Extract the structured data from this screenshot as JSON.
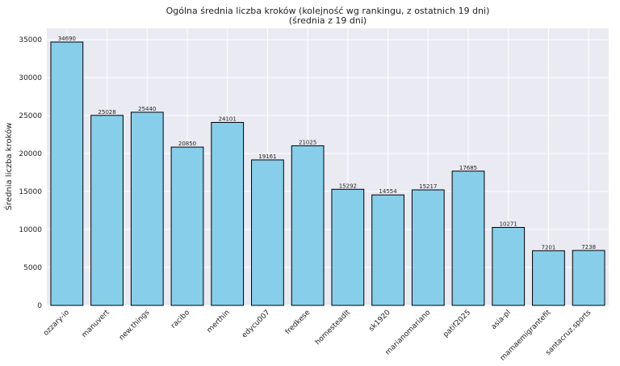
{
  "chart_data": {
    "type": "bar",
    "title": "Ogólna średnia liczba kroków (kolejność wg rankingu, z ostatnich 19 dni)",
    "subtitle": "(średnia z 19 dni)",
    "xlabel": "",
    "ylabel": "Średnia liczba kroków",
    "ylim": [
      0,
      36500
    ],
    "yticks": [
      0,
      5000,
      10000,
      15000,
      20000,
      25000,
      30000,
      35000
    ],
    "grid": true,
    "bar_color": "#87ceeb",
    "edge_color": "#000000",
    "background_color": "#eaeaf2",
    "categories": [
      "ozzary-io",
      "manuvert",
      "new.things",
      "racibo",
      "merthin",
      "edycu007",
      "fredkese",
      "homesteadlt",
      "sk1920",
      "marianomariano",
      "patif2025",
      "asia-pl",
      "mamaemigrantefit",
      "santacruz.sports"
    ],
    "values": [
      34690,
      25028,
      25440,
      20850,
      24101,
      19161,
      21025,
      15292,
      14554,
      15217,
      17685,
      10271,
      7201,
      7238
    ]
  }
}
